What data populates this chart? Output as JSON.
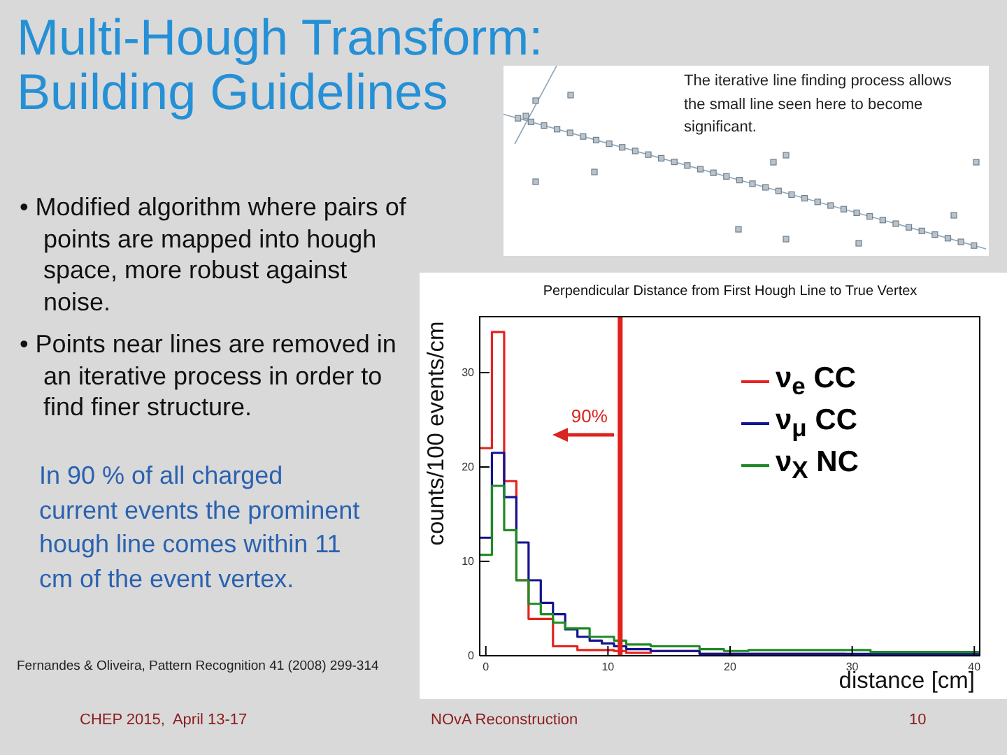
{
  "chart_data": {
    "type": "histogram",
    "title": "Multi-Hough Transform: Building Guidelines",
    "subtitle": "Perpendicular Distance from First Hough Line to True Vertex",
    "xlabel": "distance [cm]",
    "ylabel": "counts/100 events/cm",
    "bins": [
      -0.5,
      0.5,
      1.5,
      2.5,
      3.5,
      4.5,
      5.5,
      6.5,
      7.5,
      8.5,
      9.5,
      10.5,
      11.5,
      12.5,
      13.5,
      14.5,
      15.5,
      16.5,
      17.5,
      18.5,
      19.5,
      20.5,
      21.5,
      22.5,
      23.5,
      24.5,
      25.5,
      26.5,
      27.5,
      28.5,
      29.5,
      30.5,
      31.5,
      32.5,
      33.5,
      34.5,
      35.5,
      36.5,
      37.5,
      38.5,
      39.5,
      40.5
    ],
    "series": [
      {
        "name": "ν$_{e}$ CC",
        "color": "#e3231f",
        "values": [
          22.0,
          34.3,
          18.5,
          8.0,
          3.9,
          3.9,
          1.0,
          1.0,
          0.6,
          0.6,
          0.6,
          0.5,
          0.3,
          0.3,
          0.5,
          0.5,
          0.5,
          0.5,
          0.2,
          0.2,
          0.2,
          0.2,
          0.2,
          0.2,
          0.2,
          0.2,
          0.2,
          0.2,
          0.2,
          0.2,
          0.1,
          0.1,
          0.1,
          0.1,
          0.1,
          0.1,
          0.1,
          0.1,
          0.1,
          0.1,
          0.1
        ]
      },
      {
        "name": "ν$_{μ}$ CC",
        "color": "#14148f",
        "values": [
          12.5,
          21.5,
          16.8,
          12.0,
          8.0,
          5.6,
          4.4,
          2.8,
          2.0,
          1.6,
          1.3,
          1.0,
          0.7,
          0.7,
          0.5,
          0.5,
          0.5,
          0.5,
          0.2,
          0.2,
          0.2,
          0.2,
          0.2,
          0.2,
          0.2,
          0.2,
          0.2,
          0.2,
          0.2,
          0.2,
          0.2,
          0.2,
          0.2,
          0.2,
          0.2,
          0.2,
          0.2,
          0.2,
          0.2,
          0.2,
          0.2
        ]
      },
      {
        "name": "ν$_{X}$ NC",
        "color": "#1f8b24",
        "values": [
          10.7,
          18.0,
          13.3,
          8.0,
          5.5,
          4.4,
          3.5,
          2.9,
          2.9,
          2.0,
          2.0,
          1.6,
          1.2,
          1.2,
          1.0,
          1.0,
          1.0,
          1.0,
          0.7,
          0.7,
          0.5,
          0.5,
          0.6,
          0.6,
          0.6,
          0.6,
          0.6,
          0.6,
          0.6,
          0.6,
          0.6,
          0.6,
          0.4,
          0.4,
          0.4,
          0.4,
          0.4,
          0.4,
          0.4,
          0.4,
          0.4
        ]
      }
    ],
    "xlim": [
      -0.5,
      40.5
    ],
    "xticks": [
      0,
      10,
      20,
      30,
      40
    ],
    "ylim": [
      0,
      36
    ],
    "yticks": [
      0,
      10,
      20,
      30
    ],
    "legend": "top right",
    "ref_lines": [
      {
        "axis": "x",
        "value": 11,
        "color": "#e3201b"
      }
    ],
    "annotations": [
      "• Modified algorithm where pairs of points are mapped into hough space, more robust against noise.",
      "• Points near lines are removed in an iterative process in order to find finer structure.",
      "In 90 % of all charged current events the prominent hough line comes within 11 cm of the event vertex.",
      "Fernandes & Oliveira, Pattern Recognition 41 (2008) 299-314",
      "The iterative line finding process allows the small line seen here to become significant.",
      "CHEP 2015,  April 13-17",
      "NOvA Reconstruction",
      "10",
      {
        "text": "90%",
        "x": 11,
        "y": 24
      }
    ]
  }
}
